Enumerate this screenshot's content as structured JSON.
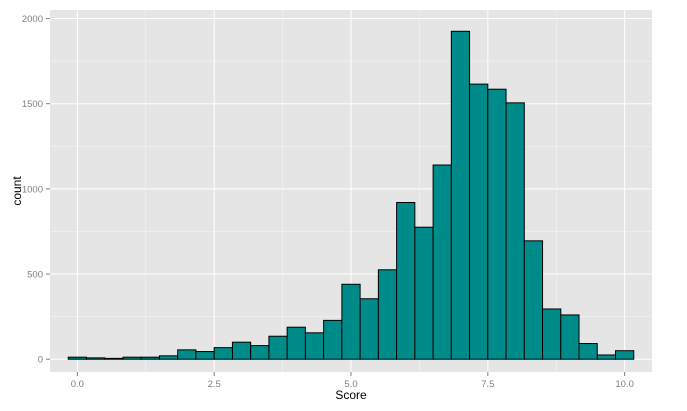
{
  "chart_data": {
    "type": "bar",
    "title": "",
    "xlabel": "Score",
    "ylabel": "count",
    "xlim": [
      -0.5,
      10.5
    ],
    "ylim": [
      -75,
      2050
    ],
    "x_ticks": [
      0.0,
      2.5,
      5.0,
      7.5,
      10.0
    ],
    "x_tick_labels": [
      "0.0",
      "2.5",
      "5.0",
      "7.5",
      "10.0"
    ],
    "y_ticks": [
      0,
      500,
      1000,
      1500,
      2000
    ],
    "y_tick_labels": [
      "0",
      "500",
      "1000",
      "1500",
      "2000"
    ],
    "bin_width": 0.3333,
    "bin_starts": [
      -0.1667,
      0.1667,
      0.5,
      0.8333,
      1.1667,
      1.5,
      1.8333,
      2.1667,
      2.5,
      2.8333,
      3.1667,
      3.5,
      3.8333,
      4.1667,
      4.5,
      4.8333,
      5.1667,
      5.5,
      5.8333,
      6.1667,
      6.5,
      6.8333,
      7.1667,
      7.5,
      7.8333,
      8.1667,
      8.5,
      8.8333,
      9.1667,
      9.5,
      9.8333
    ],
    "values": [
      12,
      8,
      5,
      12,
      12,
      20,
      55,
      45,
      68,
      100,
      80,
      135,
      188,
      155,
      228,
      440,
      355,
      525,
      920,
      775,
      1140,
      1925,
      1615,
      1585,
      1505,
      695,
      295,
      260,
      92,
      25,
      50
    ],
    "grid": true,
    "legend": "none",
    "colors": {
      "bar_fill": "#008b8b",
      "bar_stroke": "#000000",
      "panel_background": "#e5e5e5",
      "grid": "#ffffff"
    }
  }
}
